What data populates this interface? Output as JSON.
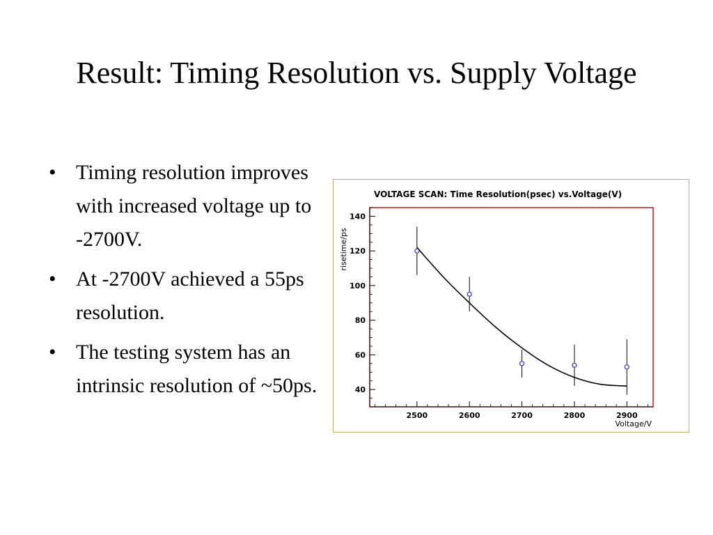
{
  "slide": {
    "title": "Result: Timing Resolution vs. Supply Voltage",
    "bullets": [
      "Timing resolution improves with increased voltage up to -2700V.",
      "At -2700V achieved a 55ps resolution.",
      "The testing system has an intrinsic resolution of ~50ps."
    ],
    "bullet_glyph": "•"
  },
  "chart_data": {
    "type": "scatter",
    "title": "VOLTAGE SCAN: Time Resolution(psec) vs.Voltage(V)",
    "xlabel": "Voltage/V",
    "ylabel": "risetime/ps",
    "xlim": [
      2410,
      2950
    ],
    "ylim": [
      30,
      145
    ],
    "xticks": [
      2500,
      2600,
      2700,
      2800,
      2900
    ],
    "yticks": [
      40,
      60,
      80,
      100,
      120,
      140
    ],
    "grid": false,
    "points": [
      {
        "x": 2500,
        "y": 120,
        "err": 14
      },
      {
        "x": 2600,
        "y": 95,
        "err": 10
      },
      {
        "x": 2700,
        "y": 55,
        "err": 8
      },
      {
        "x": 2800,
        "y": 54,
        "err": 12
      },
      {
        "x": 2900,
        "y": 53,
        "err": 16
      }
    ],
    "fit_curve": {
      "x": [
        2500,
        2550,
        2600,
        2650,
        2700,
        2750,
        2800,
        2850,
        2900
      ],
      "y": [
        122,
        105,
        90,
        76,
        64,
        54,
        47,
        43,
        42
      ]
    },
    "colors": {
      "frame": "#b9b36a",
      "plot_border": "#c01818",
      "marker": "#3333cc",
      "curve": "#000000"
    }
  }
}
